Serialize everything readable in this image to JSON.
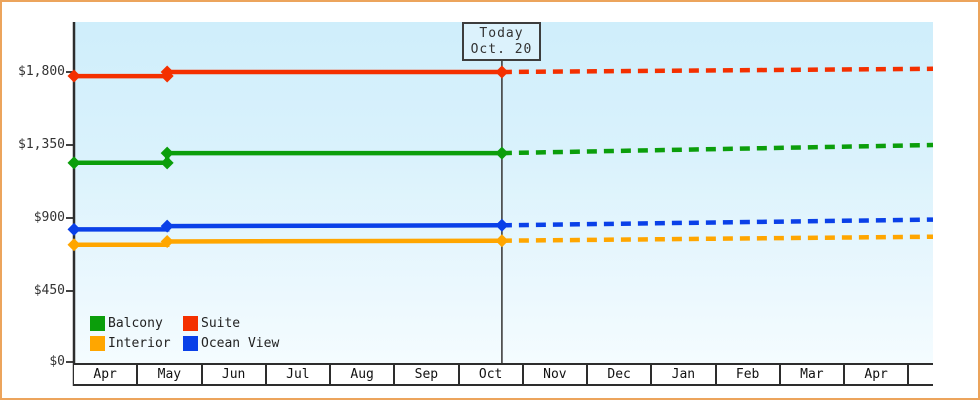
{
  "chart_data": {
    "type": "line",
    "subtype": "price-history-step-chart-with-projection",
    "today": {
      "line1": "Today",
      "line2": "Oct. 20",
      "month_index": 6.66
    },
    "y_axis": {
      "tick_labels": [
        "$1,800",
        "$1,350",
        "$900",
        "$450",
        "$0"
      ],
      "tick_values": [
        1800,
        1350,
        900,
        450,
        0
      ],
      "range": [
        0,
        2100
      ]
    },
    "x_axis": {
      "month_labels": [
        "Apr",
        "May",
        "Jun",
        "Jul",
        "Aug",
        "Sep",
        "Oct",
        "Nov",
        "Dec",
        "Jan",
        "Feb",
        "Mar",
        "Apr"
      ],
      "axis_end_month_index": 13.37
    },
    "series": [
      {
        "name": "Suite",
        "color": "#f43000",
        "history": [
          [
            0,
            1775
          ],
          [
            1.45,
            1775
          ],
          [
            1.45,
            1800
          ],
          [
            6.66,
            1800
          ]
        ],
        "projection": [
          [
            6.66,
            1800
          ],
          [
            13.37,
            1820
          ]
        ],
        "markers": [
          [
            0,
            1775
          ],
          [
            1.45,
            1775
          ],
          [
            1.45,
            1800
          ],
          [
            6.66,
            1800
          ]
        ]
      },
      {
        "name": "Balcony",
        "color": "#0b9e0b",
        "history": [
          [
            0,
            1240
          ],
          [
            1.45,
            1240
          ],
          [
            1.45,
            1300
          ],
          [
            6.66,
            1300
          ]
        ],
        "projection": [
          [
            6.66,
            1300
          ],
          [
            13.37,
            1350
          ]
        ],
        "markers": [
          [
            0,
            1240
          ],
          [
            1.45,
            1240
          ],
          [
            1.45,
            1300
          ],
          [
            6.66,
            1300
          ]
        ]
      },
      {
        "name": "Ocean View",
        "color": "#0a40e8",
        "history": [
          [
            0,
            830
          ],
          [
            1.45,
            830
          ],
          [
            1.45,
            850
          ],
          [
            6.66,
            855
          ]
        ],
        "projection": [
          [
            6.66,
            855
          ],
          [
            13.37,
            890
          ]
        ],
        "markers": [
          [
            0,
            830
          ],
          [
            1.45,
            850
          ],
          [
            6.66,
            855
          ]
        ]
      },
      {
        "name": "Interior",
        "color": "#ffa600",
        "history": [
          [
            0,
            735
          ],
          [
            1.45,
            735
          ],
          [
            1.45,
            755
          ],
          [
            6.66,
            760
          ]
        ],
        "projection": [
          [
            6.66,
            760
          ],
          [
            13.37,
            785
          ]
        ],
        "markers": [
          [
            0,
            735
          ],
          [
            1.45,
            755
          ],
          [
            6.66,
            760
          ]
        ]
      }
    ],
    "legend": {
      "rows": [
        [
          "Balcony",
          "Suite"
        ],
        [
          "Interior",
          "Ocean View"
        ]
      ]
    },
    "colors": {
      "frame_border": "#eca45c",
      "axis": "#2d2d2d",
      "today_line": "#3f3f3f",
      "plot_bg_top": "#cfeefb",
      "plot_bg_bottom": "#f4fcff"
    }
  }
}
